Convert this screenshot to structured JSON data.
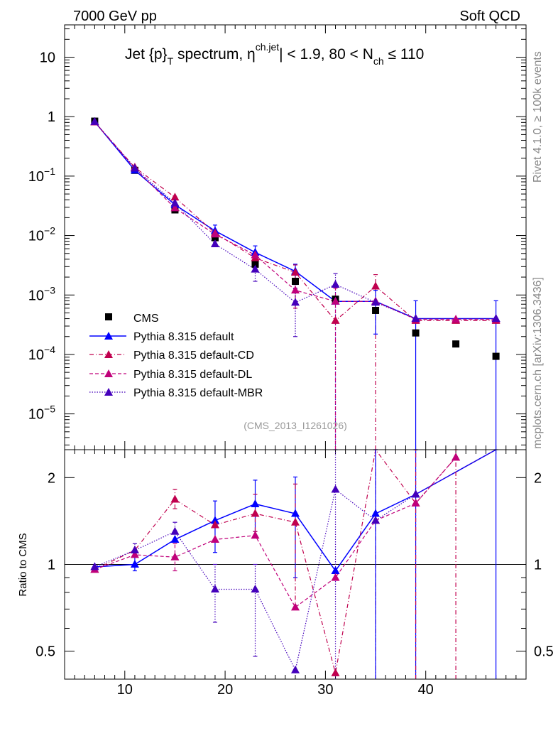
{
  "header": {
    "left": "7000 GeV pp",
    "right": "Soft QCD"
  },
  "side": {
    "rivet": "Rivet 4.1.0, ≥ 100k events",
    "mcplots": "mcplots.cern.ch [arXiv:1306.3436]"
  },
  "analysis_id": "(CMS_2013_I1261026)",
  "colors": {
    "cms": "#000000",
    "default": "#0000ff",
    "cd": "#c0004e",
    "dl": "#c0007a",
    "mbr": "#4400bb",
    "axis": "#000000",
    "muted": "#888888"
  },
  "chart_data": [
    {
      "type": "line",
      "title_parts": {
        "a": "Jet {p}",
        "a_sub": "T",
        "b": " spectrum, ",
        "c": "η",
        "c_sup": "ch.jet",
        "d": "| < 1.9, 80 < N",
        "d_sub": "ch",
        "e": " ≤ 110"
      },
      "xlabel": "",
      "ylabel": "",
      "xlim": [
        4,
        50
      ],
      "ylim": [
        2.5e-06,
        35
      ],
      "yscale": "log",
      "ytick_labels": [
        {
          "v": 10,
          "m": "10",
          "e": ""
        },
        {
          "v": 1,
          "m": "1",
          "e": ""
        },
        {
          "v": 0.1,
          "m": "10",
          "e": "−1"
        },
        {
          "v": 0.01,
          "m": "10",
          "e": "−2"
        },
        {
          "v": 0.001,
          "m": "10",
          "e": "−3"
        },
        {
          "v": 0.0001,
          "m": "10",
          "e": "−4"
        },
        {
          "v": 1e-05,
          "m": "10",
          "e": "−5"
        }
      ],
      "legend_position": "bottom-left",
      "series": [
        {
          "key": "cms",
          "name": "CMS",
          "marker": "square",
          "style": "none",
          "x": [
            7,
            11,
            15,
            19,
            23,
            27,
            31,
            35,
            39,
            43,
            47
          ],
          "y": [
            0.84,
            0.125,
            0.027,
            0.0092,
            0.0033,
            0.0017,
            0.00085,
            0.00055,
            0.00023,
            0.00015,
            9.3e-05
          ]
        },
        {
          "key": "default",
          "name": "Pythia 8.315 default",
          "marker": "triangle",
          "style": "solid",
          "x": [
            7,
            11,
            15,
            19,
            23,
            27,
            31,
            35,
            39,
            47
          ],
          "y": [
            0.82,
            0.125,
            0.033,
            0.012,
            0.0052,
            0.0025,
            0.00078,
            0.00078,
            0.0004,
            0.0004
          ]
        },
        {
          "key": "cd",
          "name": "Pythia 8.315 default-CD",
          "marker": "triangle",
          "style": "dashdot",
          "x": [
            7,
            11,
            15,
            19,
            23,
            27,
            31,
            35,
            39,
            43,
            47
          ],
          "y": [
            0.81,
            0.14,
            0.044,
            0.011,
            0.0042,
            0.0024,
            0.00037,
            0.0014,
            0.00037,
            0.00037,
            0.00037
          ]
        },
        {
          "key": "dl",
          "name": "Pythia 8.315 default-DL",
          "marker": "triangle",
          "style": "dashed",
          "x": [
            7,
            11,
            15,
            19,
            23,
            27,
            31,
            35,
            39,
            43,
            47
          ],
          "y": [
            0.81,
            0.135,
            0.029,
            0.0105,
            0.0047,
            0.0012,
            0.00078,
            0.00078,
            0.00039,
            0.00039,
            0.00039
          ]
        },
        {
          "key": "mbr",
          "name": "Pythia 8.315 default-MBR",
          "marker": "triangle",
          "style": "dotted",
          "x": [
            7,
            11,
            15,
            19,
            23,
            27,
            31,
            35,
            39,
            47
          ],
          "y": [
            0.82,
            0.135,
            0.035,
            0.0072,
            0.0027,
            0.00075,
            0.0015,
            0.00075,
            0.0004,
            0.0004
          ]
        }
      ],
      "error_bars": [
        {
          "series": "default",
          "x": 19,
          "lo": 0.0095,
          "hi": 0.015
        },
        {
          "series": "default",
          "x": 23,
          "lo": 0.0035,
          "hi": 0.0067
        },
        {
          "series": "default",
          "x": 27,
          "lo": 0.0015,
          "hi": 0.0033
        },
        {
          "series": "cd",
          "x": 27,
          "lo": 0.0006,
          "hi": 0.0032
        },
        {
          "series": "mbr",
          "x": 27,
          "lo": 0.0002,
          "hi": 0.0013
        },
        {
          "series": "mbr",
          "x": 23,
          "lo": 0.0017,
          "hi": 0.004
        },
        {
          "series": "mbr",
          "x": 31,
          "lo": 2.5e-06,
          "hi": 0.0023
        },
        {
          "series": "dl",
          "x": 31,
          "lo": 2.5e-06,
          "hi": 0.0013
        },
        {
          "series": "cd",
          "x": 35,
          "lo": 2.5e-06,
          "hi": 0.0022
        },
        {
          "series": "default",
          "x": 35,
          "lo": 0.00022,
          "hi": 0.0012
        },
        {
          "series": "default",
          "x": 39,
          "lo": 2.5e-06,
          "hi": 0.0008
        },
        {
          "series": "default",
          "x": 47,
          "lo": 2.5e-06,
          "hi": 0.0008
        }
      ]
    },
    {
      "type": "line",
      "title": "",
      "xlabel": "",
      "ylabel": "Ratio to CMS",
      "xlim": [
        4,
        50
      ],
      "ylim": [
        0.4,
        2.5
      ],
      "yscale": "log",
      "ytick_labels": [
        {
          "v": 2,
          "label": "2"
        },
        {
          "v": 1,
          "label": "1"
        },
        {
          "v": 0.5,
          "label": "0.5"
        }
      ],
      "xtick_labels": [
        {
          "v": 10,
          "label": "10"
        },
        {
          "v": 20,
          "label": "20"
        },
        {
          "v": 30,
          "label": "30"
        },
        {
          "v": 40,
          "label": "40"
        }
      ],
      "reference_line": 1,
      "series": [
        {
          "key": "default",
          "name": "Pythia 8.315 default",
          "marker": "triangle",
          "style": "solid",
          "x": [
            7,
            11,
            15,
            19,
            23,
            27,
            31,
            35,
            39,
            47
          ],
          "y": [
            0.98,
            1.0,
            1.22,
            1.42,
            1.62,
            1.5,
            0.95,
            1.5,
            1.75,
            2.9
          ]
        },
        {
          "key": "cd",
          "name": "Pythia 8.315 default-CD",
          "marker": "triangle",
          "style": "dashdot",
          "x": [
            7,
            11,
            15,
            19,
            23,
            27,
            31,
            35,
            39,
            43
          ],
          "y": [
            0.96,
            1.12,
            1.68,
            1.37,
            1.5,
            1.4,
            0.42,
            2.6,
            1.63,
            2.35
          ]
        },
        {
          "key": "dl",
          "name": "Pythia 8.315 default-DL",
          "marker": "triangle",
          "style": "dashed",
          "x": [
            7,
            11,
            15,
            19,
            23,
            27,
            31,
            35,
            39,
            43
          ],
          "y": [
            0.96,
            1.08,
            1.06,
            1.22,
            1.26,
            0.71,
            0.9,
            1.42,
            1.63,
            2.35
          ]
        },
        {
          "key": "mbr",
          "name": "Pythia 8.315 default-MBR",
          "marker": "triangle",
          "style": "dotted",
          "x": [
            7,
            11,
            15,
            19,
            23,
            27,
            31,
            35,
            39,
            47
          ],
          "y": [
            0.98,
            1.12,
            1.3,
            0.82,
            0.82,
            0.43,
            1.82,
            1.42,
            1.75,
            2.9
          ]
        }
      ],
      "error_bars": [
        {
          "series": "default",
          "x": 11,
          "lo": 0.95,
          "hi": 1.06
        },
        {
          "series": "mbr",
          "x": 11,
          "lo": 1.06,
          "hi": 1.18
        },
        {
          "series": "cd",
          "x": 15,
          "lo": 1.56,
          "hi": 1.82
        },
        {
          "series": "dl",
          "x": 15,
          "lo": 0.95,
          "hi": 1.18
        },
        {
          "series": "mbr",
          "x": 15,
          "lo": 1.2,
          "hi": 1.4
        },
        {
          "series": "default",
          "x": 19,
          "lo": 1.1,
          "hi": 1.66
        },
        {
          "series": "mbr",
          "x": 19,
          "lo": 0.63,
          "hi": 1.0
        },
        {
          "series": "default",
          "x": 23,
          "lo": 1.3,
          "hi": 1.96
        },
        {
          "series": "mbr",
          "x": 23,
          "lo": 0.48,
          "hi": 1.0
        },
        {
          "series": "cd",
          "x": 23,
          "lo": 1.3,
          "hi": 1.75
        },
        {
          "series": "default",
          "x": 27,
          "lo": 0.9,
          "hi": 2.01
        },
        {
          "series": "cd",
          "x": 27,
          "lo": 0.7,
          "hi": 1.9
        },
        {
          "series": "mbr",
          "x": 31,
          "lo": 0.37,
          "hi": 2.5
        },
        {
          "series": "cd",
          "x": 35,
          "lo": 0.37,
          "hi": 2.5
        },
        {
          "series": "default",
          "x": 35,
          "lo": 0.37,
          "hi": 2.5
        },
        {
          "series": "default",
          "x": 39,
          "lo": 0.37,
          "hi": 2.5
        },
        {
          "series": "cd",
          "x": 39,
          "lo": 0.37,
          "hi": 2.5
        },
        {
          "series": "cd",
          "x": 43,
          "lo": 0.37,
          "hi": 2.5
        },
        {
          "series": "default",
          "x": 47,
          "lo": 0.37,
          "hi": 2.5
        }
      ]
    }
  ]
}
